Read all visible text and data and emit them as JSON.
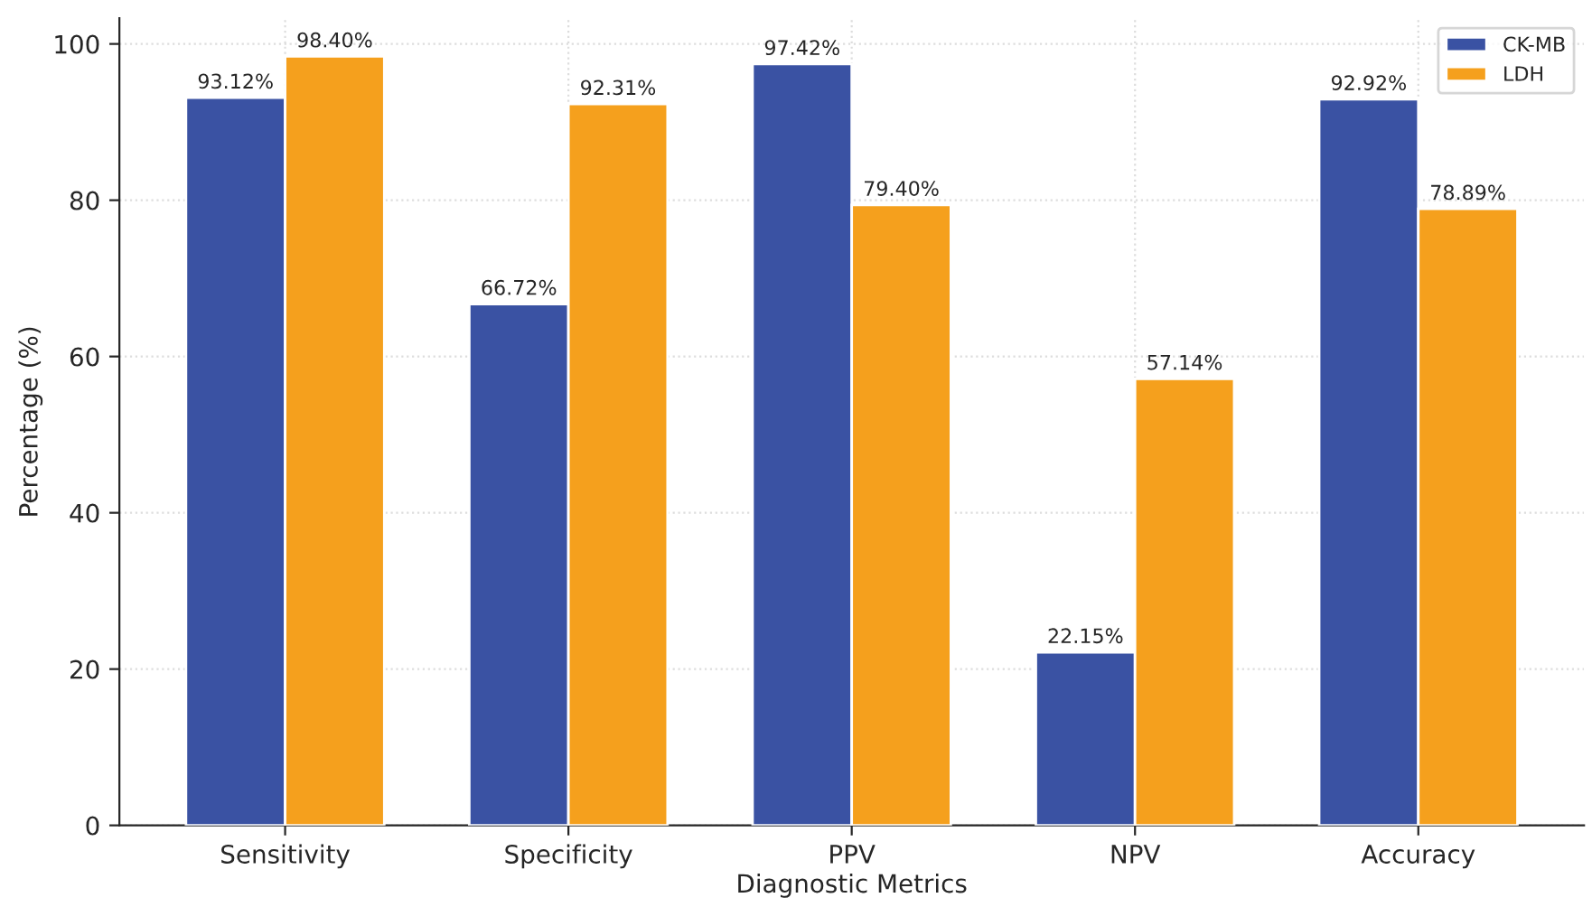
{
  "chart_data": {
    "type": "bar",
    "xlabel": "Diagnostic Metrics",
    "ylabel": "Percentage (%)",
    "categories": [
      "Sensitivity",
      "Specificity",
      "PPV",
      "NPV",
      "Accuracy"
    ],
    "series": [
      {
        "name": "CK-MB",
        "color": "#3a52a3",
        "values": [
          93.12,
          66.72,
          97.42,
          22.15,
          92.92
        ],
        "value_labels": [
          "93.12%",
          "66.72%",
          "97.42%",
          "22.15%",
          "92.92%"
        ]
      },
      {
        "name": "LDH",
        "color": "#f5a01d",
        "values": [
          98.4,
          92.31,
          79.4,
          57.14,
          78.89
        ],
        "value_labels": [
          "98.40%",
          "92.31%",
          "79.40%",
          "57.14%",
          "78.89%"
        ]
      }
    ],
    "ylim": [
      0,
      103.3
    ],
    "yticks": [
      0,
      20,
      40,
      60,
      80,
      100
    ],
    "grid": true,
    "legend": "top right"
  }
}
